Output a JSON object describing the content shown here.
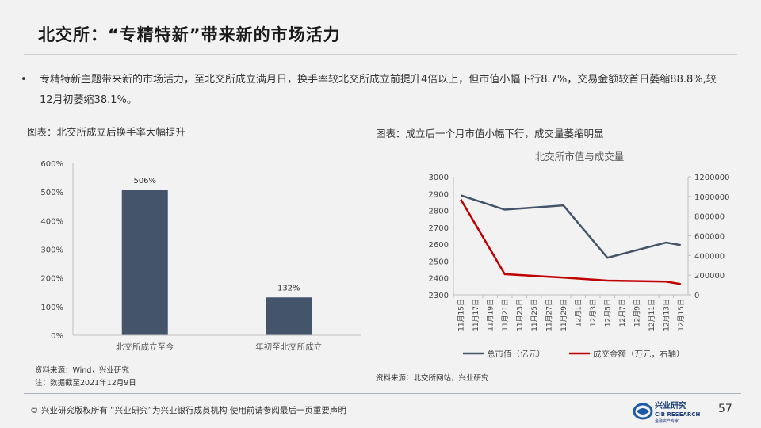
{
  "title": "北交所：“专精特新”带来新的市场活力",
  "bullet": {
    "dot": "•",
    "text": "专精特新主题带来新的市场活力，至北交所成立满月日，换手率较北交所成立前提升4倍以上，但市值小幅下行8.7%，交易金额较首日萎缩88.8%,较12月初萎缩38.1%。"
  },
  "left": {
    "caption": "图表：北交所成立后换手率大幅提升",
    "source": "资料来源：Wind，兴业研究",
    "note": "注：数据截至2021年12月9日"
  },
  "right": {
    "caption": "图表：成立后一个月市值小幅下行，成交量萎缩明显",
    "source": "资料来源：北交所网站，兴业研究"
  },
  "chart_data": [
    {
      "type": "bar",
      "title": "",
      "categories": [
        "北交所成立至今",
        "年初至北交所成立"
      ],
      "values": [
        506,
        132
      ],
      "data_labels": [
        "506%",
        "132%"
      ],
      "ylim": [
        0,
        600
      ],
      "yticks": [
        "0%",
        "100%",
        "200%",
        "300%",
        "400%",
        "500%",
        "600%"
      ],
      "bar_color": "#44546a",
      "grid": false
    },
    {
      "type": "line",
      "title": "北交所市值与成交量",
      "x": [
        "11月15日",
        "11月17日",
        "11月19日",
        "11月21日",
        "11月23日",
        "11月25日",
        "11月27日",
        "11月29日",
        "12月1日",
        "12月3日",
        "12月5日",
        "12月7日",
        "12月9日",
        "12月11日",
        "12月13日",
        "12月15日"
      ],
      "series": [
        {
          "name": "总市值（亿元）",
          "axis": "left",
          "color": "#44546a",
          "points": [
            [
              "11月15日",
              2890
            ],
            [
              "11月21日",
              2805
            ],
            [
              "11月29日",
              2830
            ],
            [
              "12月5日",
              2520
            ],
            [
              "12月13日",
              2610
            ],
            [
              "12月15日",
              2595
            ]
          ]
        },
        {
          "name": "成交金额（万元，右轴）",
          "axis": "right",
          "color": "#c00000",
          "points": [
            [
              "11月15日",
              970000
            ],
            [
              "11月21日",
              210000
            ],
            [
              "11月29日",
              175000
            ],
            [
              "12月5日",
              145000
            ],
            [
              "12月13日",
              135000
            ],
            [
              "12月15日",
              110000
            ]
          ]
        }
      ],
      "ylim_left": [
        2300,
        3000
      ],
      "yticks_left": [
        "2300",
        "2400",
        "2500",
        "2600",
        "2700",
        "2800",
        "2900",
        "3000"
      ],
      "ylim_right": [
        0,
        1200000
      ],
      "yticks_right": [
        "0",
        "200000",
        "400000",
        "600000",
        "800000",
        "1000000",
        "1200000"
      ],
      "legend_position": "bottom",
      "grid": false
    }
  ],
  "footer": {
    "text": "©  兴业研究版权所有   “兴业研究”为兴业银行成员机构   使用前请参阅最后一页重要声明",
    "logo_cn": "兴业研究",
    "logo_en": "CIB RESEARCH",
    "logo_sub": "金融资产专家",
    "page": "57"
  },
  "colors": {
    "bar": "#44546a",
    "line_value": "#44546a",
    "line_volume": "#c00000"
  }
}
